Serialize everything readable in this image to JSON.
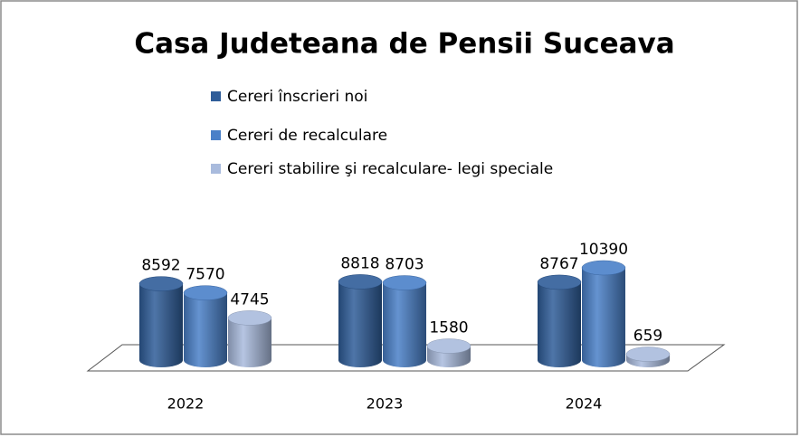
{
  "chart_data": {
    "type": "bar3d",
    "title": "Casa Judeteana de Pensii Suceava",
    "categories": [
      "2022",
      "2023",
      "2024"
    ],
    "series": [
      {
        "name": "Cereri  înscrieri noi",
        "color": "#2f5d99",
        "values": [
          8592,
          8818,
          8767
        ]
      },
      {
        "name": "Cereri de recalculare",
        "color": "#4a80c8",
        "values": [
          7570,
          8703,
          10390
        ]
      },
      {
        "name": "Cereri stabilire şi recalculare- legi speciale",
        "color": "#a9bbdd",
        "values": [
          4745,
          1580,
          659
        ]
      }
    ]
  }
}
